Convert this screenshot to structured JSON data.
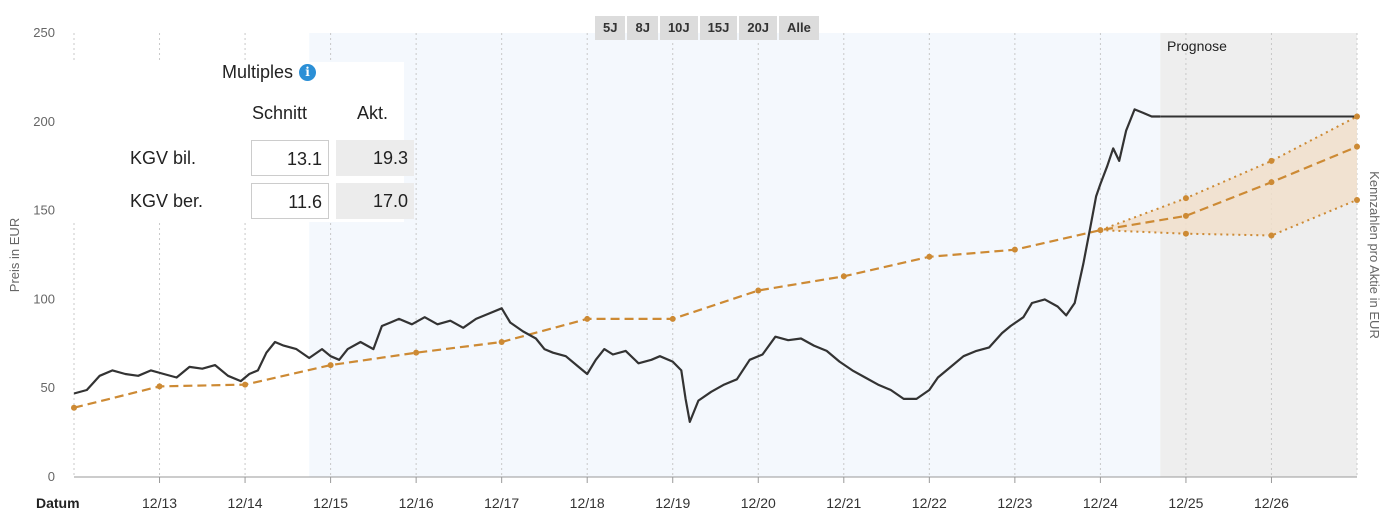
{
  "range_buttons": [
    "5J",
    "8J",
    "10J",
    "15J",
    "20J",
    "Alle"
  ],
  "multiples": {
    "title": "Multiples",
    "info_icon": "info-icon",
    "col_avg": "Schnitt",
    "col_current": "Akt.",
    "rows": [
      {
        "label": "KGV bil.",
        "avg": "13.1",
        "current": "19.3"
      },
      {
        "label": "KGV ber.",
        "avg": "11.6",
        "current": "17.0"
      }
    ]
  },
  "prognose_label": "Prognose",
  "chart_data": {
    "type": "line",
    "title": "",
    "xlabel": "Datum",
    "ylabel": "Preis in EUR",
    "y2label": "Kennzahlen pro Aktie in EUR",
    "ylim": [
      0,
      250
    ],
    "yticks": [
      0,
      50,
      100,
      150,
      200,
      250
    ],
    "xlim": [
      2012.0,
      2027.0
    ],
    "xticks": [
      {
        "label": "12/13",
        "x": 2013.0
      },
      {
        "label": "12/14",
        "x": 2014.0
      },
      {
        "label": "12/15",
        "x": 2015.0
      },
      {
        "label": "12/16",
        "x": 2016.0
      },
      {
        "label": "12/17",
        "x": 2017.0
      },
      {
        "label": "12/18",
        "x": 2018.0
      },
      {
        "label": "12/19",
        "x": 2019.0
      },
      {
        "label": "12/20",
        "x": 2020.0
      },
      {
        "label": "12/21",
        "x": 2021.0
      },
      {
        "label": "12/22",
        "x": 2022.0
      },
      {
        "label": "12/23",
        "x": 2023.0
      },
      {
        "label": "12/24",
        "x": 2024.0
      },
      {
        "label": "12/25",
        "x": 2025.0
      },
      {
        "label": "12/26",
        "x": 2026.0
      }
    ],
    "shaded_regions": [
      {
        "from": 2014.75,
        "to": 2024.7,
        "color": "#f4f8fd"
      },
      {
        "from": 2024.7,
        "to": 2027.0,
        "color": "#eeeeee"
      }
    ],
    "grid": true,
    "colors": {
      "price": "#333333",
      "fair_value": "#cd8a34",
      "band_fill": "#f1dfcb"
    },
    "series": [
      {
        "kind": "price",
        "points": [
          [
            2012.0,
            47
          ],
          [
            2012.15,
            49
          ],
          [
            2012.3,
            57
          ],
          [
            2012.45,
            60
          ],
          [
            2012.6,
            58
          ],
          [
            2012.75,
            57
          ],
          [
            2012.9,
            60
          ],
          [
            2013.05,
            58
          ],
          [
            2013.2,
            56
          ],
          [
            2013.35,
            62
          ],
          [
            2013.5,
            61
          ],
          [
            2013.65,
            63
          ],
          [
            2013.8,
            57
          ],
          [
            2013.95,
            54
          ],
          [
            2014.05,
            58
          ],
          [
            2014.15,
            60
          ],
          [
            2014.25,
            70
          ],
          [
            2014.35,
            76
          ],
          [
            2014.45,
            74
          ],
          [
            2014.6,
            72
          ],
          [
            2014.75,
            67
          ],
          [
            2014.9,
            72
          ],
          [
            2015.0,
            68
          ],
          [
            2015.1,
            66
          ],
          [
            2015.2,
            72
          ],
          [
            2015.35,
            76
          ],
          [
            2015.5,
            72
          ],
          [
            2015.6,
            85
          ],
          [
            2015.7,
            87
          ],
          [
            2015.8,
            89
          ],
          [
            2015.95,
            86
          ],
          [
            2016.1,
            90
          ],
          [
            2016.25,
            86
          ],
          [
            2016.4,
            88
          ],
          [
            2016.55,
            84
          ],
          [
            2016.7,
            89
          ],
          [
            2016.85,
            92
          ],
          [
            2017.0,
            95
          ],
          [
            2017.1,
            87
          ],
          [
            2017.25,
            82
          ],
          [
            2017.4,
            78
          ],
          [
            2017.5,
            72
          ],
          [
            2017.6,
            70
          ],
          [
            2017.75,
            68
          ],
          [
            2017.9,
            62
          ],
          [
            2018.0,
            58
          ],
          [
            2018.1,
            66
          ],
          [
            2018.2,
            72
          ],
          [
            2018.3,
            69
          ],
          [
            2018.45,
            71
          ],
          [
            2018.6,
            64
          ],
          [
            2018.75,
            66
          ],
          [
            2018.85,
            68
          ],
          [
            2019.0,
            65
          ],
          [
            2019.1,
            60
          ],
          [
            2019.15,
            44
          ],
          [
            2019.2,
            31
          ],
          [
            2019.3,
            43
          ],
          [
            2019.45,
            48
          ],
          [
            2019.6,
            52
          ],
          [
            2019.75,
            55
          ],
          [
            2019.9,
            66
          ],
          [
            2020.05,
            69
          ],
          [
            2020.2,
            79
          ],
          [
            2020.35,
            77
          ],
          [
            2020.5,
            78
          ],
          [
            2020.65,
            74
          ],
          [
            2020.8,
            71
          ],
          [
            2020.95,
            65
          ],
          [
            2021.1,
            60
          ],
          [
            2021.25,
            56
          ],
          [
            2021.4,
            52
          ],
          [
            2021.55,
            49
          ],
          [
            2021.7,
            44
          ],
          [
            2021.85,
            44
          ],
          [
            2022.0,
            49
          ],
          [
            2022.1,
            56
          ],
          [
            2022.25,
            62
          ],
          [
            2022.4,
            68
          ],
          [
            2022.55,
            71
          ],
          [
            2022.7,
            73
          ],
          [
            2022.85,
            81
          ],
          [
            2022.95,
            85
          ],
          [
            2023.1,
            90
          ],
          [
            2023.2,
            98
          ],
          [
            2023.35,
            100
          ],
          [
            2023.5,
            96
          ],
          [
            2023.6,
            91
          ],
          [
            2023.7,
            98
          ],
          [
            2023.8,
            120
          ],
          [
            2023.88,
            140
          ],
          [
            2023.95,
            158
          ],
          [
            2024.0,
            165
          ],
          [
            2024.08,
            175
          ],
          [
            2024.15,
            185
          ],
          [
            2024.22,
            178
          ],
          [
            2024.3,
            195
          ],
          [
            2024.4,
            207
          ],
          [
            2024.5,
            205
          ],
          [
            2024.6,
            203
          ],
          [
            2024.7,
            203
          ]
        ]
      },
      {
        "kind": "forecast_hold",
        "points": [
          [
            2024.7,
            203
          ],
          [
            2027.0,
            203
          ]
        ]
      },
      {
        "kind": "fair_value",
        "points": [
          [
            2012.0,
            39
          ],
          [
            2013.0,
            51
          ],
          [
            2014.0,
            52
          ],
          [
            2015.0,
            63
          ],
          [
            2016.0,
            70
          ],
          [
            2017.0,
            76
          ],
          [
            2018.0,
            89
          ],
          [
            2019.0,
            89
          ],
          [
            2020.0,
            105
          ],
          [
            2021.0,
            113
          ],
          [
            2022.0,
            124
          ],
          [
            2023.0,
            128
          ],
          [
            2024.0,
            139
          ],
          [
            2025.0,
            147
          ],
          [
            2026.0,
            166
          ],
          [
            2027.0,
            186
          ]
        ]
      },
      {
        "kind": "forecast_high",
        "points": [
          [
            2024.0,
            139
          ],
          [
            2025.0,
            157
          ],
          [
            2026.0,
            178
          ],
          [
            2027.0,
            203
          ]
        ]
      },
      {
        "kind": "forecast_low",
        "points": [
          [
            2024.0,
            139
          ],
          [
            2025.0,
            137
          ],
          [
            2026.0,
            136
          ],
          [
            2027.0,
            156
          ]
        ]
      }
    ]
  }
}
